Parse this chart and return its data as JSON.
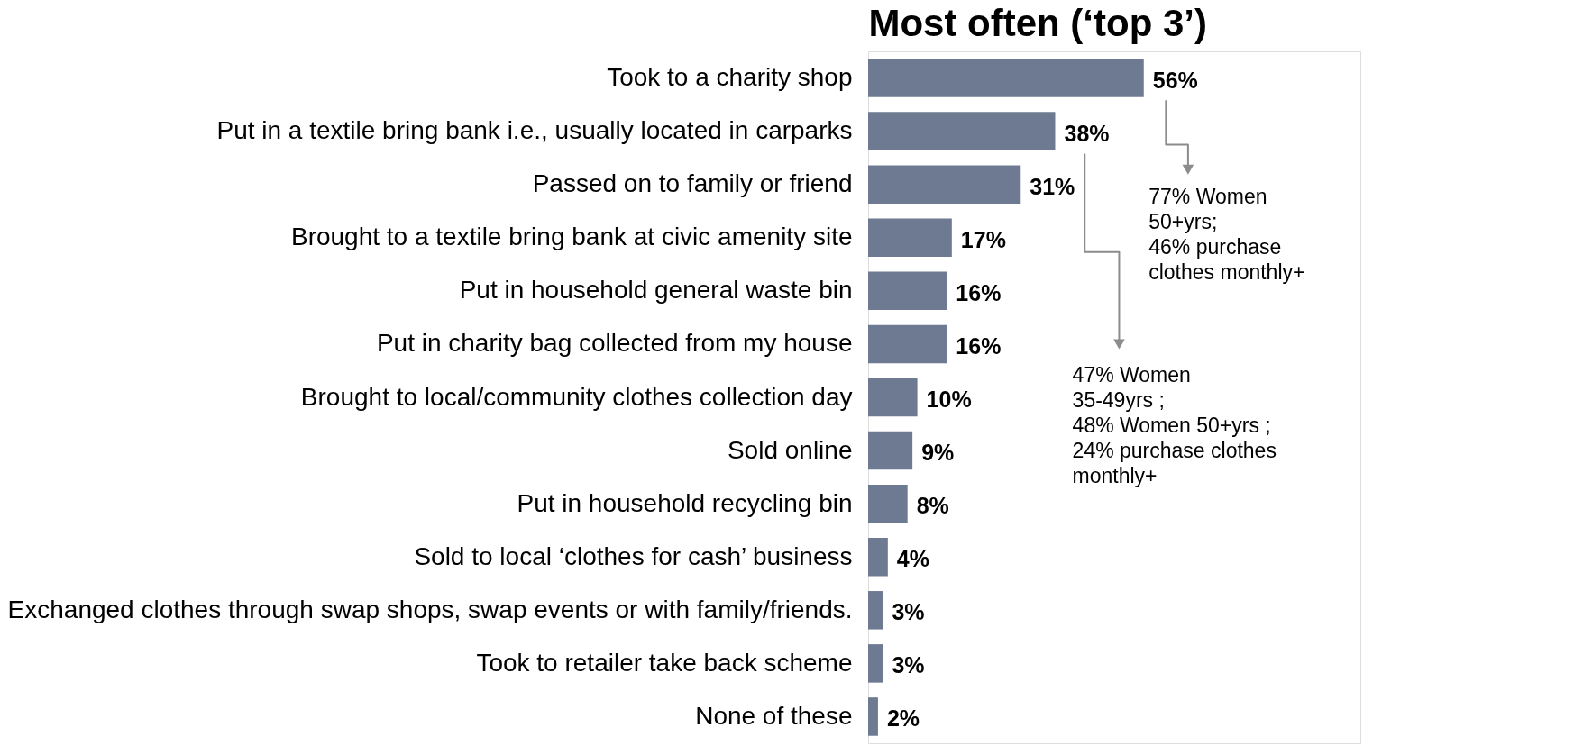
{
  "chart_data": {
    "type": "bar",
    "orientation": "horizontal",
    "title": "Most often (‘top 3’)",
    "categories": [
      "Took to a charity shop",
      "Put in a textile bring bank i.e., usually located in carparks",
      "Passed on to family or friend",
      "Brought to a textile bring bank at civic amenity site",
      "Put in household general waste bin",
      "Put in charity bag collected from my house",
      "Brought to local/community clothes collection day",
      "Sold online",
      "Put in household recycling bin",
      "Sold to local ‘clothes for cash’ business",
      "Exchanged clothes through swap shops, swap events or with family/friends.",
      "Took to retailer take back scheme",
      "None of these"
    ],
    "values": [
      56,
      38,
      31,
      17,
      16,
      16,
      10,
      9,
      8,
      4,
      3,
      3,
      2
    ],
    "value_labels": [
      "56%",
      "38%",
      "31%",
      "17%",
      "16%",
      "16%",
      "10%",
      "9%",
      "8%",
      "4%",
      "3%",
      "3%",
      "2%"
    ],
    "color": "#6e7a91",
    "xlim": [
      0,
      100
    ],
    "tick_labels": "y",
    "grid": false,
    "annotations": [
      "77% Women\n50+yrs;\n46% purchase\nclothes monthly+",
      "47% Women\n35-49yrs ;\n48% Women 50+yrs ;\n24% purchase clothes\nmonthly+"
    ]
  }
}
